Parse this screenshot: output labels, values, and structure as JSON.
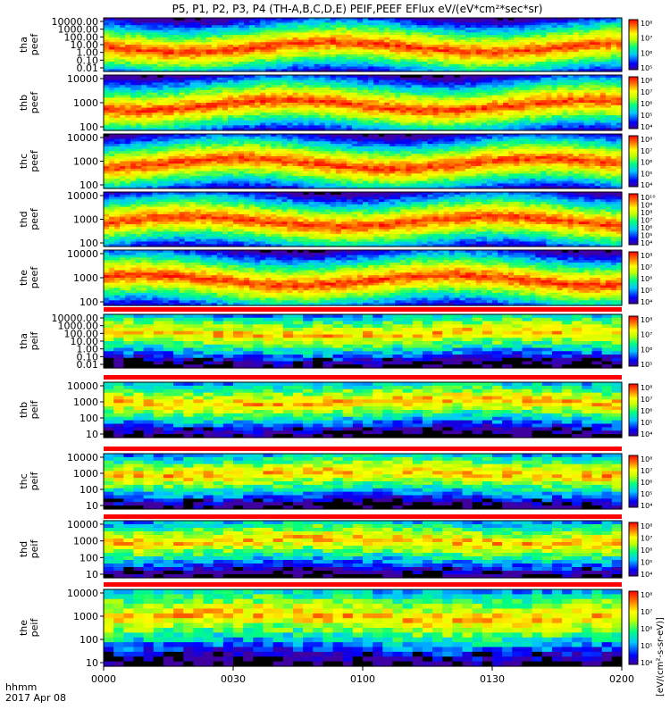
{
  "title": "P5, P1, P2, P3, P4 (TH-A,B,C,D,E) PEIF,PEEF EFlux eV/(eV*cm²*sec*sr)",
  "time_axis": {
    "label_line1": "hhmm",
    "label_line2": "2017 Apr 08",
    "ticks": [
      "0000",
      "0030",
      "0100",
      "0130",
      "0200"
    ]
  },
  "colorbar_unit": "[eV/(cm²-s-sr-eV)]",
  "colorbar_tick_labels": {
    "set_1": [
      "10⁵",
      "10⁶",
      "10⁷",
      "10⁸"
    ],
    "set_2": [
      "10⁴",
      "10⁵",
      "10⁶",
      "10⁷",
      "10⁸"
    ],
    "set_3": [
      "10⁴",
      "10⁵",
      "10⁶",
      "10⁷",
      "10⁸",
      "10⁹",
      "10¹⁰"
    ]
  },
  "chart_data": {
    "type": "heatmap",
    "x_range": [
      "0000",
      "0200"
    ],
    "y_scale": "log",
    "grid": false,
    "panels": [
      {
        "probe": "tha",
        "product": "peef",
        "y_ticks": [
          "10000.00",
          "1000.00",
          "100.00",
          "10.00",
          "1.00",
          "0.10",
          "0.01"
        ],
        "colorbar": "set_1"
      },
      {
        "probe": "thb",
        "product": "peef",
        "y_ticks": [
          "10000",
          "1000",
          "100"
        ],
        "colorbar": "set_2"
      },
      {
        "probe": "thc",
        "product": "peef",
        "y_ticks": [
          "10000",
          "1000",
          "100"
        ],
        "colorbar": "set_2"
      },
      {
        "probe": "thd",
        "product": "peef",
        "y_ticks": [
          "10000",
          "1000",
          "100"
        ],
        "colorbar": "set_3"
      },
      {
        "probe": "the",
        "product": "peef",
        "y_ticks": [
          "10000",
          "1000",
          "100"
        ],
        "colorbar": "set_2"
      },
      {
        "probe": "tha",
        "product": "peif",
        "y_ticks": [
          "10000.00",
          "1000.00",
          "100.00",
          "10.00",
          "1.00",
          "0.10",
          "0.01"
        ],
        "colorbar": "set_1"
      },
      {
        "probe": "thb",
        "product": "peif",
        "y_ticks": [
          "10000",
          "1000",
          "100",
          "10"
        ],
        "colorbar": "set_2"
      },
      {
        "probe": "thc",
        "product": "peif",
        "y_ticks": [
          "10000",
          "1000",
          "100",
          "10"
        ],
        "colorbar": "set_2"
      },
      {
        "probe": "thd",
        "product": "peif",
        "y_ticks": [
          "10000",
          "1000",
          "100",
          "10"
        ],
        "colorbar": "set_2"
      },
      {
        "probe": "the",
        "product": "peif",
        "y_ticks": [
          "10000",
          "1000",
          "100",
          "10"
        ],
        "colorbar": "set_2"
      }
    ]
  }
}
